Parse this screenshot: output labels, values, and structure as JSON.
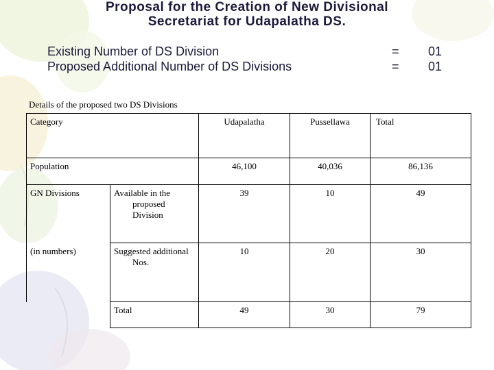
{
  "title": {
    "line1": "Proposal for the Creation of New  Divisional",
    "line2": "Secretariat for Udapalatha DS."
  },
  "stats": [
    {
      "label": "Existing Number of DS Division",
      "eq": "=",
      "value": "01"
    },
    {
      "label": "Proposed Additional Number of DS Divisions",
      "eq": "=",
      "value": "01"
    }
  ],
  "details_caption": "Details of the proposed two DS Divisions",
  "table": {
    "header": {
      "category": "Category",
      "col1": "Udapalatha",
      "col2": "Pussellawa",
      "total": "Total"
    },
    "population": {
      "label": "Population",
      "v1": "46,100",
      "v2": "40,036",
      "total": "86,136"
    },
    "gn_label": "GN Divisions",
    "gn_sublabel": "(in numbers)",
    "available": {
      "label": "Available in the proposed Division",
      "v1": "39",
      "v2": "10",
      "total": "49"
    },
    "suggested": {
      "label": "Suggested additional Nos.",
      "v1": "10",
      "v2": "20",
      "total": "30"
    },
    "totals": {
      "label": "Total",
      "v1": "49",
      "v2": "30",
      "total": "79"
    }
  },
  "colors": {
    "title": "#1a1a3a",
    "background": "#ffffff"
  }
}
